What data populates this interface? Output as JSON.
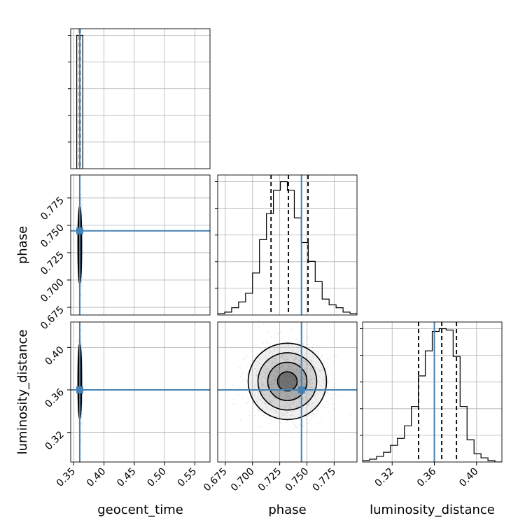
{
  "chart_data": {
    "type": "corner",
    "params": [
      "geocent_time",
      "phase",
      "luminosity_distance"
    ],
    "axis_labels": {
      "geocent_time": "geocent_time",
      "phase": "phase",
      "luminosity_distance": "luminosity_distance"
    },
    "ranges": {
      "geocent_time": [
        0.345,
        0.575
      ],
      "phase": [
        0.668,
        0.796
      ],
      "luminosity_distance": [
        0.292,
        0.424
      ]
    },
    "ticks": {
      "geocent_time": [
        0.35,
        0.4,
        0.45,
        0.5,
        0.55
      ],
      "phase": [
        0.675,
        0.7,
        0.725,
        0.75,
        0.775
      ],
      "luminosity_distance": [
        0.32,
        0.36,
        0.4
      ]
    },
    "tick_labels": {
      "geocent_time": [
        "0.35",
        "0.40",
        "0.45",
        "0.50",
        "0.55"
      ],
      "phase": [
        "0.675",
        "0.700",
        "0.725",
        "0.750",
        "0.775"
      ],
      "luminosity_distance": [
        "0.32",
        "0.36",
        "0.40"
      ]
    },
    "truths": {
      "geocent_time": 0.36,
      "phase": 0.745,
      "luminosity_distance": 0.36
    },
    "quantiles": {
      "geocent_time": [
        0.3595,
        0.36,
        0.3605
      ],
      "phase": [
        0.717,
        0.733,
        0.751
      ],
      "luminosity_distance": [
        0.345,
        0.367,
        0.381
      ]
    },
    "histograms": {
      "geocent_time": {
        "edges": [
          0.355,
          0.365
        ],
        "counts": [
          1.0
        ]
      },
      "phase": {
        "edges": [
          0.668,
          0.6744,
          0.6808,
          0.6872,
          0.6936,
          0.7,
          0.7064,
          0.7128,
          0.7192,
          0.7256,
          0.732,
          0.7384,
          0.7448,
          0.7512,
          0.7576,
          0.764,
          0.7704,
          0.7768,
          0.7832,
          0.7896,
          0.796
        ],
        "counts": [
          0.01,
          0.02,
          0.05,
          0.09,
          0.15,
          0.29,
          0.52,
          0.7,
          0.86,
          0.92,
          0.86,
          0.67,
          0.5,
          0.37,
          0.23,
          0.11,
          0.07,
          0.05,
          0.02,
          0.01
        ]
      },
      "luminosity_distance": {
        "edges": [
          0.292,
          0.2986,
          0.3052,
          0.3118,
          0.3184,
          0.325,
          0.3316,
          0.3382,
          0.3448,
          0.3514,
          0.358,
          0.3646,
          0.3712,
          0.3778,
          0.3844,
          0.391,
          0.3976,
          0.4042,
          0.4108,
          0.4174,
          0.424
        ],
        "counts": [
          0.01,
          0.02,
          0.04,
          0.07,
          0.12,
          0.17,
          0.26,
          0.4,
          0.62,
          0.8,
          0.94,
          0.96,
          0.95,
          0.76,
          0.4,
          0.16,
          0.06,
          0.03,
          0.01,
          0.0
        ]
      }
    },
    "samples_2d": {
      "geocent_time": {
        "center": 0.36,
        "sd": 0.0015
      },
      "phase": {
        "center": 0.732,
        "sd": 0.018
      },
      "luminosity_distance": {
        "center": 0.368,
        "sd": 0.018
      }
    },
    "contour_levels": [
      "0.5-sigma",
      "1-sigma",
      "1.5-sigma",
      "2-sigma"
    ],
    "colors": {
      "truth": "#4682b4",
      "data": "#000000",
      "grid": "#b0b0b0"
    },
    "grid": true
  }
}
